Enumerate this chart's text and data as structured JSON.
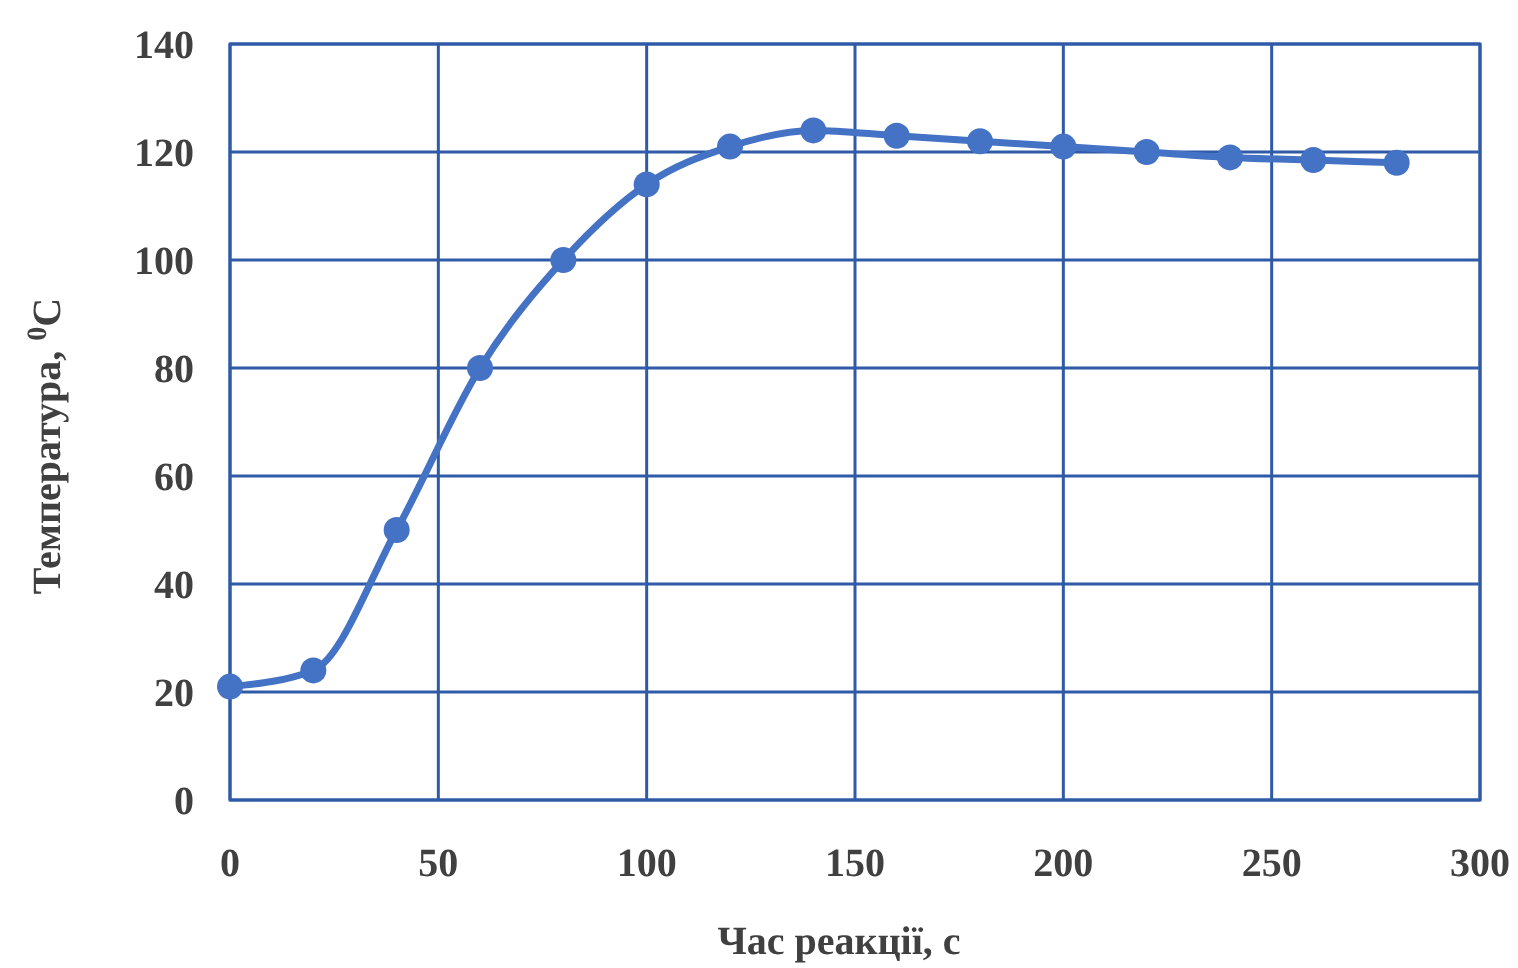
{
  "chart_data": {
    "type": "line",
    "xlabel": "Час реакції, с",
    "ylabel": "Температура, $^{0}$C",
    "x": [
      0,
      20,
      40,
      60,
      80,
      100,
      120,
      140,
      160,
      180,
      200,
      220,
      240,
      260,
      280
    ],
    "series": [
      {
        "color": "#4472c4",
        "values": [
          21,
          24,
          50,
          80,
          100,
          114,
          121,
          124,
          123,
          122,
          121,
          120,
          119,
          118.5,
          118
        ]
      }
    ],
    "xlim": [
      0,
      300
    ],
    "xticks": [
      0,
      50,
      100,
      150,
      200,
      250,
      300
    ],
    "ylim": [
      0,
      140
    ],
    "yticks": [
      0,
      20,
      40,
      60,
      80,
      100,
      120,
      140
    ],
    "grid": true,
    "marker": "circle",
    "line_style": "solid"
  }
}
